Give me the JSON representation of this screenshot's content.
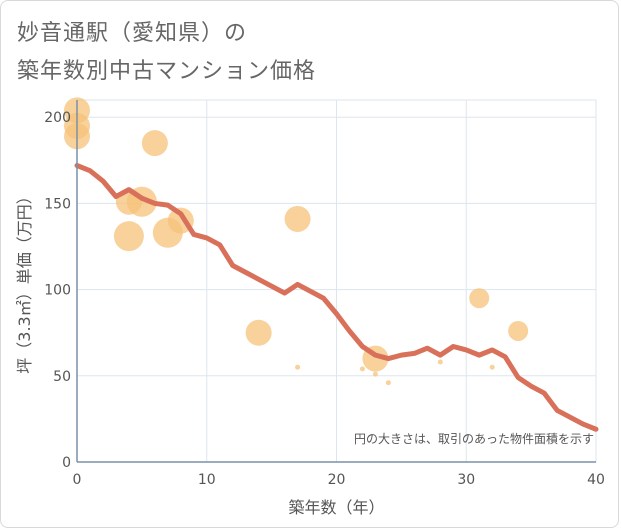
{
  "page": {
    "title_line1": "妙音通駅（愛知県）の",
    "title_line2": "築年数別中古マンション価格"
  },
  "chart_data": {
    "type": "scatter",
    "xlabel": "築年数（年）",
    "ylabel": "坪（3.3㎡）単価（万円）",
    "xlim": [
      0,
      40
    ],
    "ylim": [
      0,
      210
    ],
    "x_ticks": [
      0,
      10,
      20,
      30,
      40
    ],
    "y_ticks": [
      0,
      50,
      100,
      150,
      200
    ],
    "grid": true,
    "note": "円の大きさは、取引のあった物件面積を示す",
    "colors": {
      "bubble": "#f5c27a",
      "line": "#d9705a",
      "grid": "#dde6ee",
      "axis": "#7a90a8"
    },
    "bubbles": [
      {
        "x": 0,
        "y": 204,
        "size": 3
      },
      {
        "x": 0,
        "y": 195,
        "size": 3
      },
      {
        "x": 0,
        "y": 189,
        "size": 3
      },
      {
        "x": 4,
        "y": 151,
        "size": 3
      },
      {
        "x": 4,
        "y": 131,
        "size": 4
      },
      {
        "x": 5,
        "y": 151,
        "size": 4
      },
      {
        "x": 6,
        "y": 185,
        "size": 3
      },
      {
        "x": 7,
        "y": 133,
        "size": 4
      },
      {
        "x": 8,
        "y": 140,
        "size": 3
      },
      {
        "x": 14,
        "y": 75,
        "size": 3
      },
      {
        "x": 17,
        "y": 141,
        "size": 3
      },
      {
        "x": 17,
        "y": 55,
        "size": 0
      },
      {
        "x": 22,
        "y": 54,
        "size": 0
      },
      {
        "x": 23,
        "y": 60,
        "size": 3
      },
      {
        "x": 23,
        "y": 51,
        "size": 0
      },
      {
        "x": 24,
        "y": 46,
        "size": 0
      },
      {
        "x": 28,
        "y": 58,
        "size": 0
      },
      {
        "x": 31,
        "y": 95,
        "size": 2
      },
      {
        "x": 32,
        "y": 55,
        "size": 0
      },
      {
        "x": 34,
        "y": 76,
        "size": 2
      }
    ],
    "series": [
      {
        "x": [
          0,
          1,
          2,
          3,
          4,
          5,
          6,
          7,
          8,
          9,
          10,
          11,
          12,
          13,
          14,
          15,
          16,
          17,
          18,
          19,
          20,
          21,
          22,
          23,
          24,
          25,
          26,
          27,
          28,
          29,
          30,
          31,
          32,
          33,
          34,
          35,
          36,
          37,
          38,
          39,
          40
        ],
        "values": [
          172,
          169,
          163,
          154,
          158,
          153,
          150,
          149,
          144,
          132,
          130,
          126,
          114,
          110,
          106,
          102,
          98,
          103,
          99,
          95,
          86,
          76,
          67,
          62,
          60,
          62,
          63,
          66,
          62,
          67,
          65,
          62,
          65,
          61,
          49,
          44,
          40,
          30,
          26,
          22,
          19
        ]
      }
    ]
  }
}
